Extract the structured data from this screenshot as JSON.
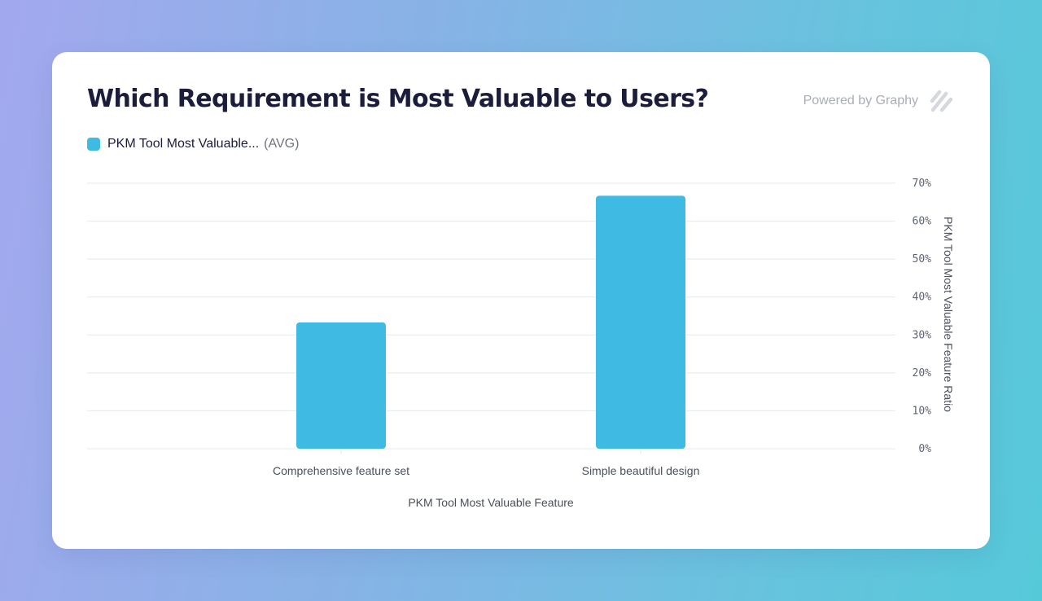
{
  "header": {
    "title": "Which Requirement is Most Valuable to Users?",
    "powered_by": "Powered by Graphy",
    "logo_icon": "graphy-slash-logo-icon"
  },
  "legend": {
    "name": "PKM Tool Most Valuable...",
    "aggregate": "(AVG)"
  },
  "colors": {
    "bar": "#3fbae2",
    "gridline": "#e6e8ee",
    "logo": "#d5d8df"
  },
  "chart_data": {
    "type": "bar",
    "categories": [
      "Comprehensive feature set",
      "Simple beautiful design"
    ],
    "series": [
      {
        "name": "PKM Tool Most Valuable...",
        "aggregate": "AVG",
        "values": [
          33.3,
          66.7
        ]
      }
    ],
    "xlabel": "PKM Tool Most Valuable Feature",
    "ylabel": "PKM Tool Most Valuable Feature Ratio",
    "ylim": [
      0,
      70
    ],
    "yticks": [
      0,
      10,
      20,
      30,
      40,
      50,
      60,
      70
    ],
    "ytick_labels": [
      "0%",
      "10%",
      "20%",
      "30%",
      "40%",
      "50%",
      "60%",
      "70%"
    ],
    "y_axis_position": "right",
    "grid": true,
    "legend_position": "top-left"
  }
}
